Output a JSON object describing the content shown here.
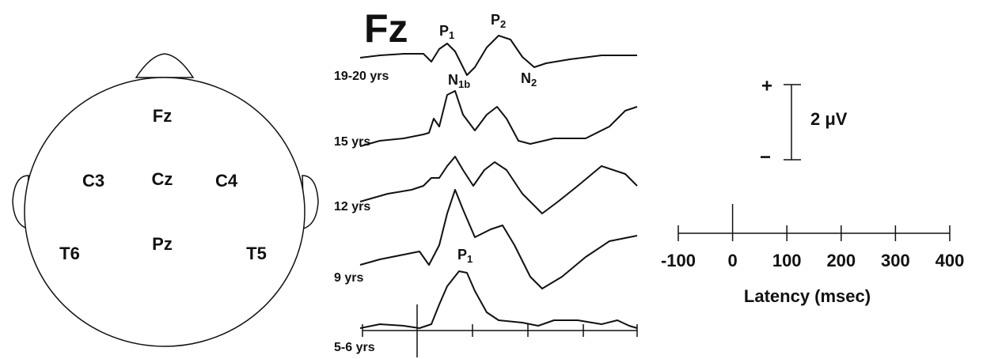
{
  "title": "Fz",
  "electrodes": [
    "Fz",
    "C3",
    "Cz",
    "C4",
    "T6",
    "Pz",
    "T5"
  ],
  "age_groups": [
    "19-20 yrs",
    "15 yrs",
    "12 yrs",
    "9 yrs",
    "5-6 yrs"
  ],
  "components": [
    {
      "letter": "P",
      "sub": "1"
    },
    {
      "letter": "P",
      "sub": "2"
    },
    {
      "letter": "N",
      "sub": "1b"
    },
    {
      "letter": "N",
      "sub": "2"
    },
    {
      "letter": "P",
      "sub": "1"
    }
  ],
  "scale": {
    "plus": "+",
    "minus": "−",
    "label": "2 μV"
  },
  "latency_axis": {
    "ticks": [
      -100,
      0,
      100,
      200,
      300,
      400
    ],
    "label": "Latency (msec)"
  }
}
